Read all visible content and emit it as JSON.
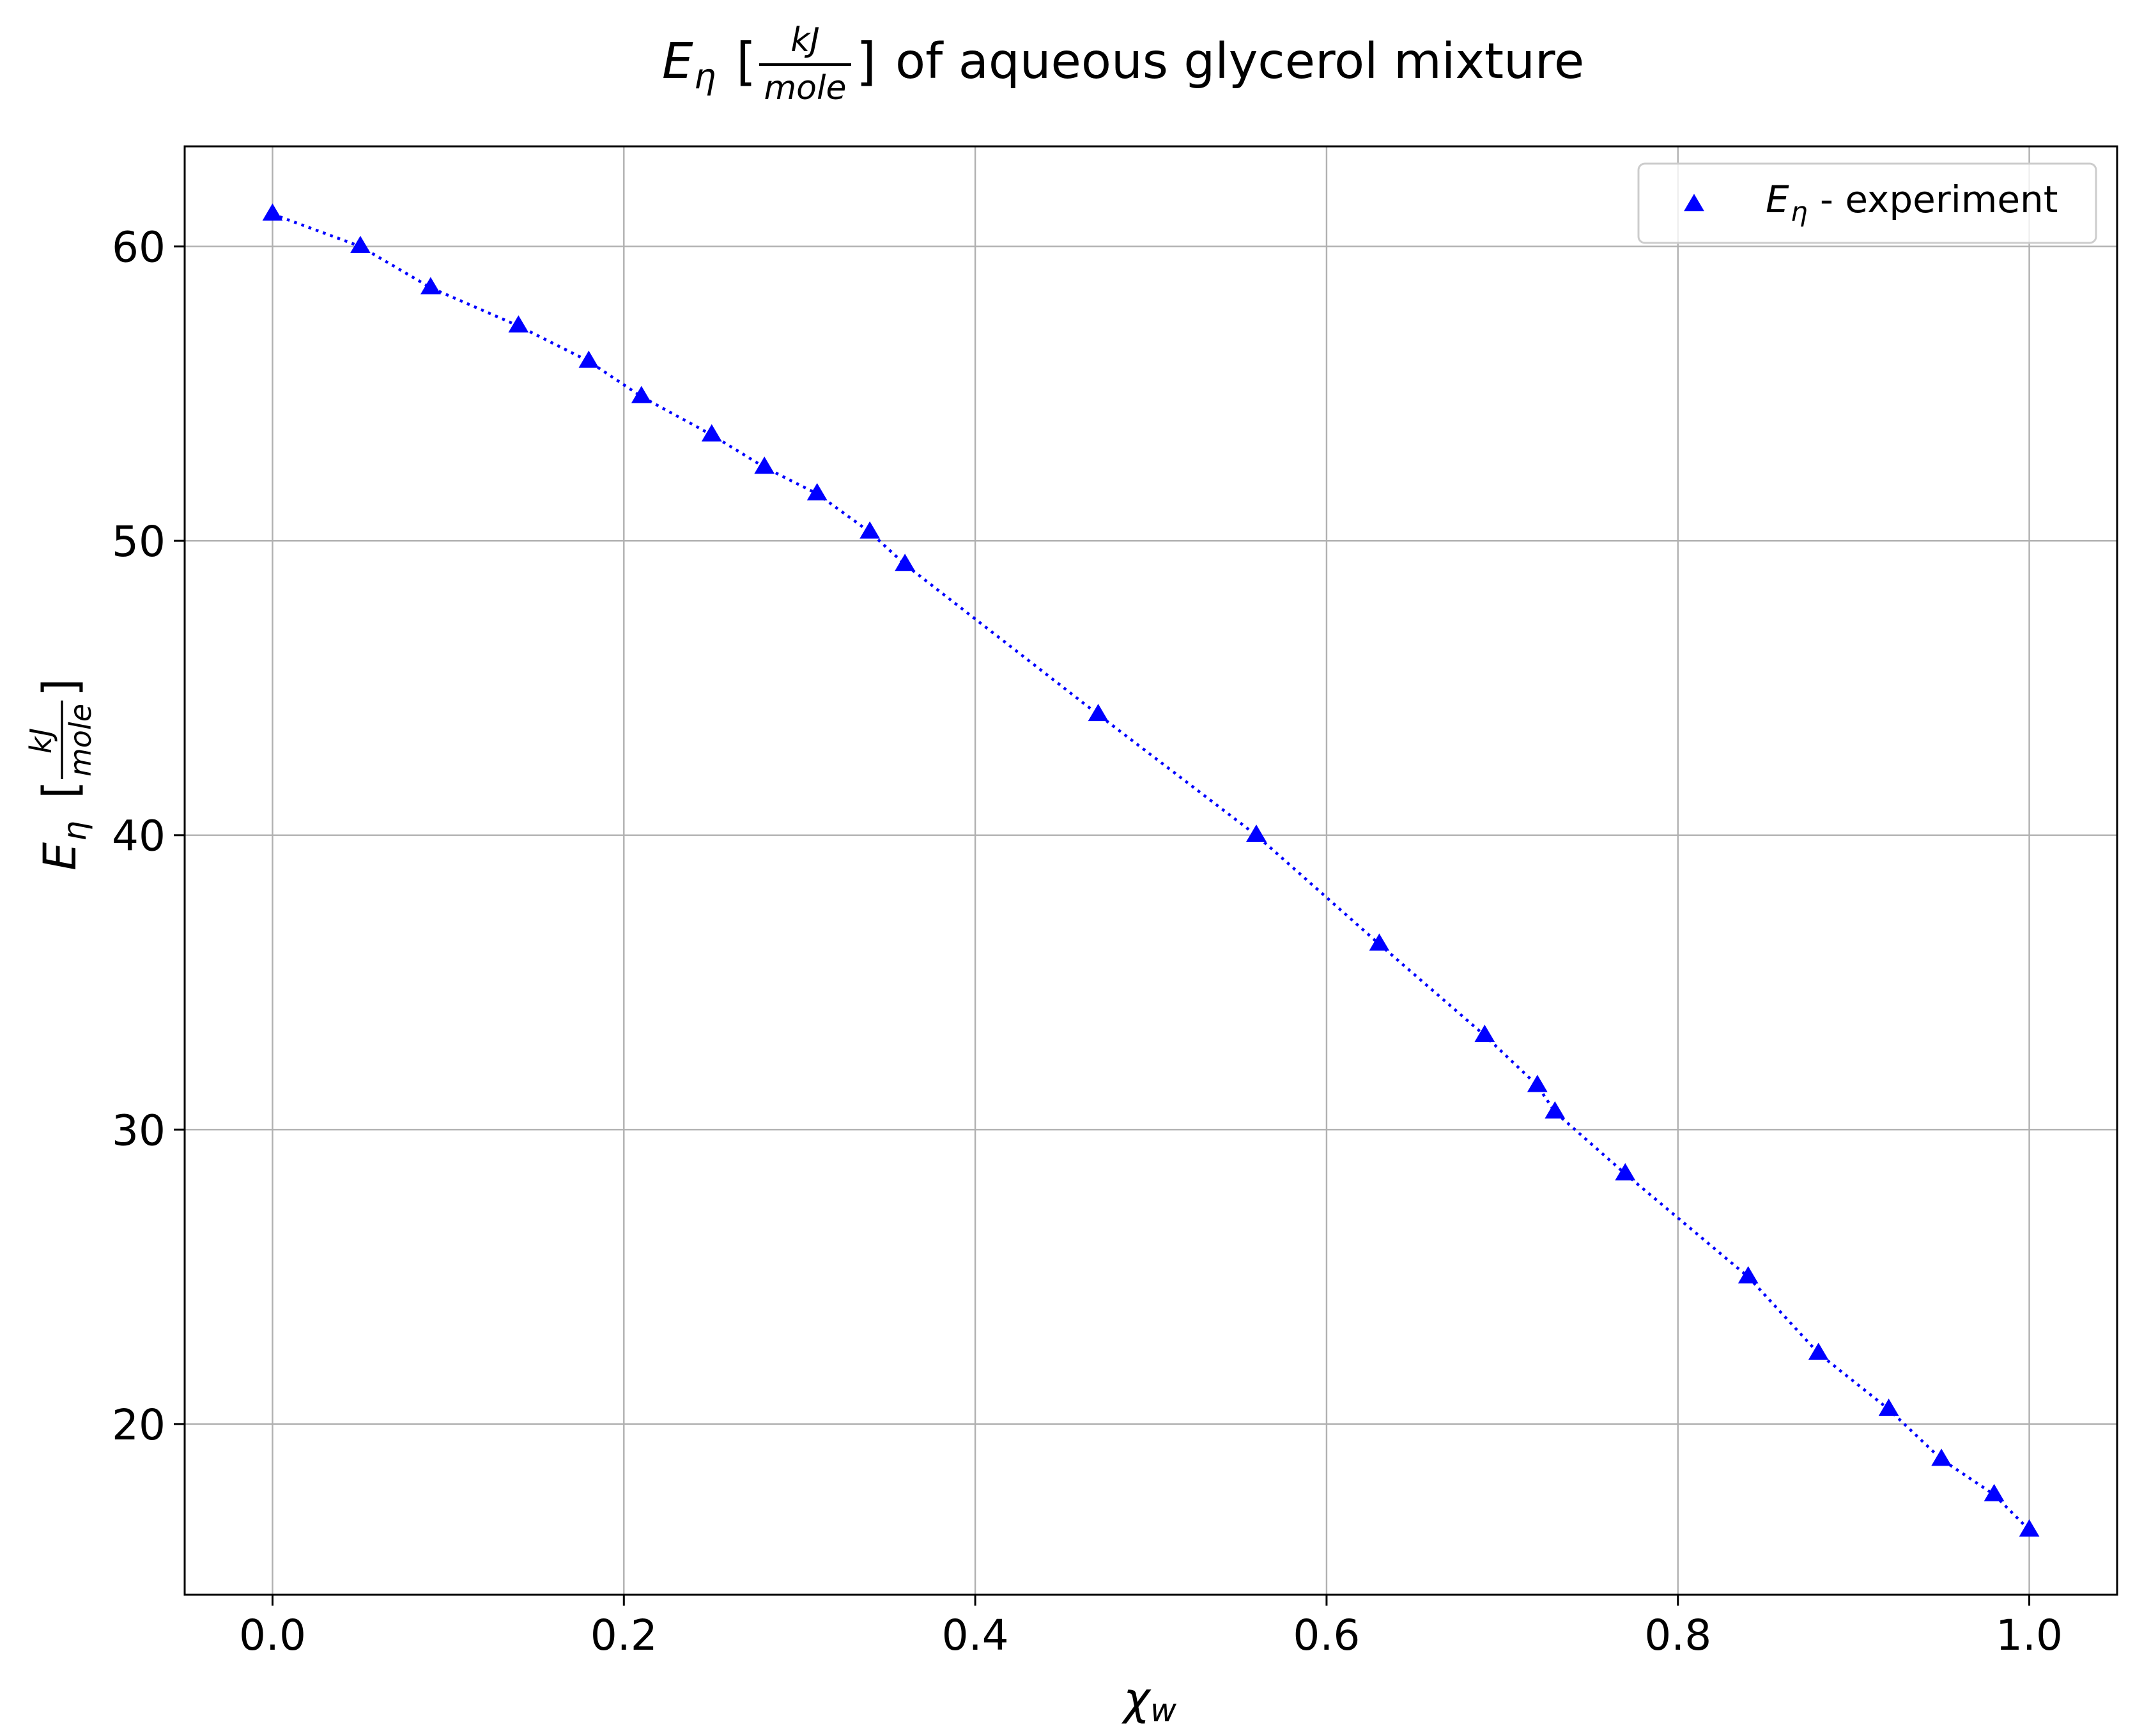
{
  "chart_data": {
    "type": "scatter",
    "title": {
      "symbol": "E",
      "subscript": "η",
      "unit_numerator": "kJ",
      "unit_denominator": "mole",
      "text": "of aqueous glycerol mixture"
    },
    "xlabel": {
      "symbol": "χ",
      "subscript": "w"
    },
    "ylabel": {
      "symbol": "E",
      "subscript": "η",
      "unit_numerator": "kJ",
      "unit_denominator": "mole"
    },
    "xlim": [
      -0.05,
      1.05
    ],
    "ylim": [
      14.2,
      63.4
    ],
    "xticks": [
      "0.0",
      "0.2",
      "0.4",
      "0.6",
      "0.8",
      "1.0"
    ],
    "yticks": [
      "20",
      "30",
      "40",
      "50",
      "60"
    ],
    "grid": true,
    "legend_position": "top-right",
    "series": [
      {
        "name": {
          "symbol": "E",
          "subscript": "η",
          "text": "- experiment"
        },
        "marker": "triangle",
        "line_style": "dotted",
        "color": "#0000ff",
        "x": [
          0.0,
          0.05,
          0.09,
          0.14,
          0.18,
          0.21,
          0.25,
          0.28,
          0.31,
          0.34,
          0.36,
          0.47,
          0.56,
          0.63,
          0.69,
          0.72,
          0.73,
          0.77,
          0.84,
          0.88,
          0.92,
          0.95,
          0.98,
          1.0
        ],
        "y": [
          61.1,
          60.0,
          58.6,
          57.3,
          56.1,
          54.9,
          53.6,
          52.5,
          51.6,
          50.3,
          49.2,
          44.1,
          40.0,
          36.3,
          33.2,
          31.5,
          30.6,
          28.5,
          25.0,
          22.4,
          20.5,
          18.8,
          17.6,
          16.4
        ]
      }
    ]
  }
}
